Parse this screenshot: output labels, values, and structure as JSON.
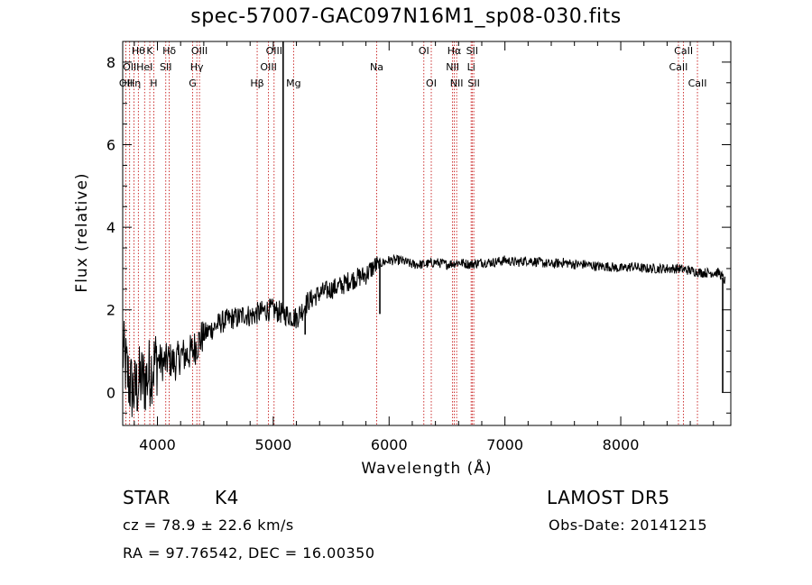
{
  "chart_data": {
    "type": "line",
    "title": "spec-57007-GAC097N16M1_sp08-030.fits",
    "xlabel": "Wavelength (Å)",
    "ylabel": "Flux (relative)",
    "xlim": [
      3700,
      8950
    ],
    "ylim": [
      -0.8,
      8.5
    ],
    "x_ticks": [
      4000,
      5000,
      6000,
      7000,
      8000
    ],
    "y_ticks": [
      0,
      2,
      4,
      6,
      8
    ],
    "grid": false,
    "series": [
      {
        "x": [
          3700,
          3760,
          3800,
          3850,
          3900,
          3950,
          4000,
          4050,
          4100,
          4150,
          4200,
          4250,
          4300,
          4350,
          4400,
          4450,
          4500,
          4550,
          4600,
          4650,
          4700,
          4750,
          4800,
          4850,
          4900,
          4950,
          5000,
          5050,
          5100,
          5150,
          5200,
          5250,
          5300,
          5350,
          5400,
          5450,
          5500,
          5550,
          5600,
          5650,
          5700,
          5750,
          5800,
          5850,
          5900,
          5950,
          6000,
          6100,
          6200,
          6300,
          6400,
          6500,
          6600,
          6700,
          6800,
          6900,
          7000,
          7100,
          7200,
          7300,
          7400,
          7500,
          7600,
          7700,
          7800,
          7900,
          8000,
          8100,
          8200,
          8300,
          8400,
          8500,
          8600,
          8700,
          8800,
          8850,
          8900
        ],
        "y": [
          1.0,
          0.2,
          0.0,
          0.3,
          0.3,
          0.6,
          0.8,
          0.7,
          0.8,
          0.7,
          0.9,
          0.9,
          1.0,
          1.2,
          1.4,
          1.5,
          1.6,
          1.7,
          1.75,
          1.8,
          1.8,
          1.9,
          1.85,
          1.9,
          1.95,
          2.0,
          2.0,
          1.95,
          1.9,
          1.85,
          1.8,
          2.0,
          2.2,
          2.3,
          2.4,
          2.45,
          2.5,
          2.55,
          2.6,
          2.7,
          2.75,
          2.8,
          2.85,
          3.0,
          3.1,
          3.15,
          3.2,
          3.2,
          3.1,
          3.1,
          3.15,
          3.1,
          3.15,
          3.1,
          3.15,
          3.15,
          3.2,
          3.15,
          3.2,
          3.15,
          3.1,
          3.15,
          3.1,
          3.1,
          3.05,
          3.05,
          3.0,
          3.05,
          3.0,
          3.0,
          3.0,
          3.0,
          2.95,
          2.9,
          2.9,
          2.9,
          2.7
        ]
      }
    ],
    "spikes": [
      {
        "x": 5085,
        "y": 8.5
      },
      {
        "x": 5920,
        "y": 1.9
      },
      {
        "x": 5275,
        "y": 1.4
      },
      {
        "x": 8880,
        "y": 0.0
      }
    ],
    "line_markers": [
      {
        "x": 3727,
        "label": "OII",
        "row": 2
      },
      {
        "x": 3760,
        "label": "OII",
        "row": 1
      },
      {
        "x": 3798,
        "label": "Hη",
        "row": 2
      },
      {
        "x": 3835,
        "label": "Hθ",
        "row": 0
      },
      {
        "x": 3889,
        "label": "HeI",
        "row": 1
      },
      {
        "x": 3934,
        "label": "K",
        "row": 0
      },
      {
        "x": 3968,
        "label": "H",
        "row": 2
      },
      {
        "x": 4072,
        "label": "SII",
        "row": 1
      },
      {
        "x": 4102,
        "label": "Hδ",
        "row": 0
      },
      {
        "x": 4304,
        "label": "G",
        "row": 2
      },
      {
        "x": 4340,
        "label": "Hγ",
        "row": 1
      },
      {
        "x": 4363,
        "label": "OIII",
        "row": 0
      },
      {
        "x": 4861,
        "label": "Hβ",
        "row": 2
      },
      {
        "x": 4959,
        "label": "OIII",
        "row": 1
      },
      {
        "x": 5007,
        "label": "OIII",
        "row": 0
      },
      {
        "x": 5175,
        "label": "Mg",
        "row": 2
      },
      {
        "x": 5893,
        "label": "Na",
        "row": 1
      },
      {
        "x": 6300,
        "label": "OI",
        "row": 0
      },
      {
        "x": 6364,
        "label": "OI",
        "row": 2
      },
      {
        "x": 6548,
        "label": "NII",
        "row": 1
      },
      {
        "x": 6563,
        "label": "Hα",
        "row": 0
      },
      {
        "x": 6583,
        "label": "NII",
        "row": 2
      },
      {
        "x": 6708,
        "label": "Li",
        "row": 1
      },
      {
        "x": 6717,
        "label": "SII",
        "row": 0
      },
      {
        "x": 6731,
        "label": "SII",
        "row": 2
      },
      {
        "x": 8498,
        "label": "CaII",
        "row": 1
      },
      {
        "x": 8542,
        "label": "CaII",
        "row": 0
      },
      {
        "x": 8662,
        "label": "CaII",
        "row": 2
      }
    ]
  },
  "info": {
    "class": "STAR",
    "subclass": "K4",
    "survey": "LAMOST DR5",
    "cz": "cz = 78.9 ± 22.6 km/s",
    "obs_date": "Obs-Date: 20141215",
    "coords": "RA =  97.76542, DEC =  16.00350"
  },
  "colors": {
    "spectrum": "#000000",
    "marker_line": "#c00000",
    "axes": "#000000"
  }
}
